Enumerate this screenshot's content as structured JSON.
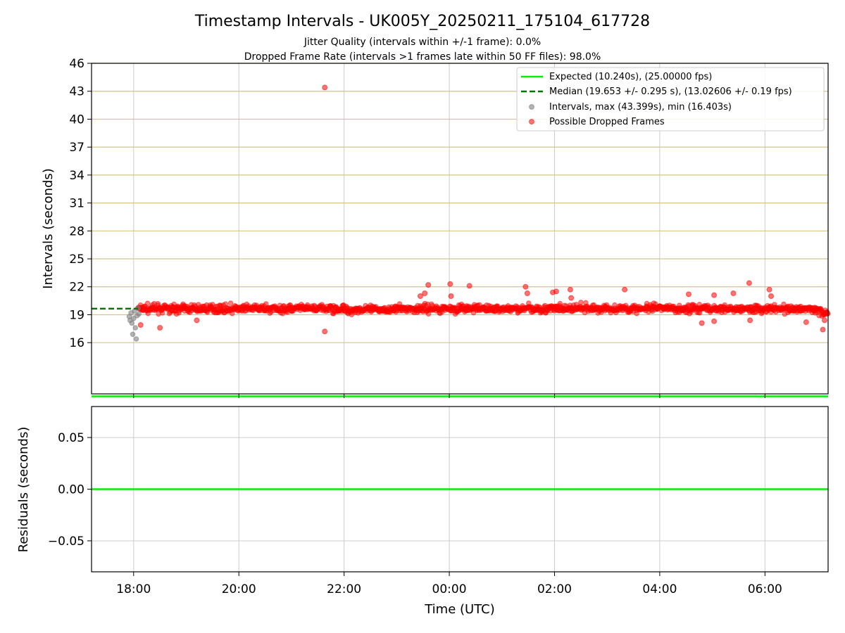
{
  "title": "Timestamp Intervals - UK005Y_20250211_175104_617728",
  "subtitle_lines": [
    "Jitter Quality (intervals within +/-1 frame): 0.0%",
    "Dropped Frame Rate (intervals >1 frames late within 50 FF files): 98.0%"
  ],
  "colors": {
    "expected": "#00ee00",
    "median": "#007700",
    "intervals": "#808080",
    "dropped": "#ff0000",
    "hgrid": "#d4c48a",
    "vgrid": "#cccccc"
  },
  "chart_data": [
    {
      "type": "scatter",
      "ylabel": "Intervals (seconds)",
      "x_axis": "time",
      "xlim": [
        "17:12",
        "07:12"
      ],
      "ylim": [
        10.5,
        46
      ],
      "y_ticks": [
        16,
        19,
        22,
        25,
        28,
        31,
        34,
        37,
        40,
        43,
        46
      ],
      "x_ticks": [
        "18:00",
        "20:00",
        "22:00",
        "00:00",
        "02:00",
        "04:00",
        "06:00"
      ],
      "grid": true,
      "legend_position": "top-right",
      "legend": [
        "Expected (10.240s), (25.00000 fps)",
        "Median (19.653 +/- 0.295 s), (13.02606 +/- 0.19 fps)",
        "Intervals, max (43.399s), min (16.403s)",
        "Possible Dropped Frames"
      ],
      "expected_interval": 10.24,
      "median_interval": 19.653,
      "median_x_range": [
        "17:12",
        "18:05"
      ],
      "interval_points": [
        {
          "x": "17:55",
          "y": 18.8
        },
        {
          "x": "17:56",
          "y": 18.4
        },
        {
          "x": "17:57",
          "y": 19.2
        },
        {
          "x": "17:58",
          "y": 18.1
        },
        {
          "x": "17:59",
          "y": 16.9
        },
        {
          "x": "18:00",
          "y": 18.6
        },
        {
          "x": "18:01",
          "y": 19.4
        },
        {
          "x": "18:02",
          "y": 17.6
        },
        {
          "x": "18:03",
          "y": 16.4
        },
        {
          "x": "18:04",
          "y": 18.9
        },
        {
          "x": "18:05",
          "y": 19.7
        },
        {
          "x": "18:06",
          "y": 19.1
        }
      ],
      "dropped_band": {
        "x_start": "18:05",
        "x_end": "07:12",
        "y_center": 19.65,
        "y_spread": 0.35
      },
      "dropped_outliers": [
        {
          "x": "21:38",
          "y": 43.4
        },
        {
          "x": "21:38",
          "y": 17.2
        },
        {
          "x": "18:08",
          "y": 17.9
        },
        {
          "x": "18:30",
          "y": 17.6
        },
        {
          "x": "19:12",
          "y": 18.4
        },
        {
          "x": "23:27",
          "y": 21.0
        },
        {
          "x": "23:32",
          "y": 21.3
        },
        {
          "x": "23:36",
          "y": 22.2
        },
        {
          "x": "00:01",
          "y": 22.3
        },
        {
          "x": "00:02",
          "y": 21.0
        },
        {
          "x": "00:23",
          "y": 22.1
        },
        {
          "x": "01:27",
          "y": 22.0
        },
        {
          "x": "01:29",
          "y": 21.3
        },
        {
          "x": "01:58",
          "y": 21.4
        },
        {
          "x": "02:02",
          "y": 21.5
        },
        {
          "x": "02:18",
          "y": 21.7
        },
        {
          "x": "02:19",
          "y": 20.8
        },
        {
          "x": "03:20",
          "y": 21.7
        },
        {
          "x": "04:33",
          "y": 21.2
        },
        {
          "x": "04:48",
          "y": 18.1
        },
        {
          "x": "05:02",
          "y": 21.1
        },
        {
          "x": "05:02",
          "y": 18.3
        },
        {
          "x": "05:24",
          "y": 21.3
        },
        {
          "x": "05:42",
          "y": 22.4
        },
        {
          "x": "05:43",
          "y": 18.4
        },
        {
          "x": "06:05",
          "y": 21.7
        },
        {
          "x": "06:07",
          "y": 21.0
        },
        {
          "x": "06:47",
          "y": 18.2
        },
        {
          "x": "07:06",
          "y": 17.4
        },
        {
          "x": "07:08",
          "y": 18.4
        }
      ]
    },
    {
      "type": "line",
      "ylabel": "Residuals (seconds)",
      "xlabel": "Time (UTC)",
      "x_axis": "time",
      "xlim": [
        "17:12",
        "07:12"
      ],
      "ylim": [
        -0.08,
        0.08
      ],
      "y_ticks": [
        0.05,
        0.0,
        -0.05
      ],
      "y_tick_labels": [
        "0.05",
        "0.00",
        "−0.05"
      ],
      "x_ticks": [
        "18:00",
        "20:00",
        "22:00",
        "00:00",
        "02:00",
        "04:00",
        "06:00"
      ],
      "grid": true,
      "series": [
        {
          "x": [
            "17:12",
            "07:12"
          ],
          "y": [
            0.0,
            0.0
          ]
        }
      ]
    }
  ]
}
